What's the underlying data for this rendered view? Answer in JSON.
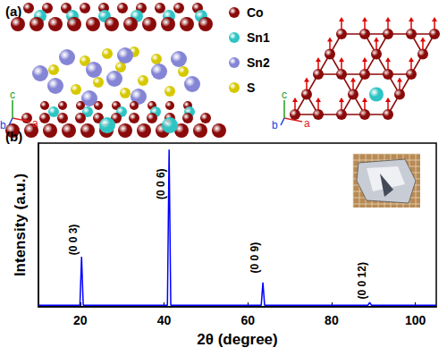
{
  "panel_a": {
    "label": "(a)",
    "legend": [
      {
        "text": "Co",
        "color": "#8b0a0a"
      },
      {
        "text": "Sn1",
        "color": "#2ec4c4"
      },
      {
        "text": "Sn2",
        "color": "#8585d6"
      },
      {
        "text": "S",
        "color": "#d6c800"
      }
    ],
    "axis_labels": [
      "a",
      "b",
      "c"
    ]
  },
  "chart_data": {
    "type": "line",
    "panel_label": "(b)",
    "x_label": "2θ (degree)",
    "y_label": "Intensity (a.u.)",
    "x": [
      10,
      19.9,
      20.3,
      20.7,
      40.8,
      41.2,
      41.6,
      63.2,
      63.6,
      64.0,
      88.7,
      89.1,
      89.5,
      105
    ],
    "values": [
      1,
      1,
      30.6,
      1,
      1,
      96,
      1,
      1,
      14.8,
      1,
      1,
      2.7,
      1,
      1
    ],
    "color": "#0000ff",
    "xlim": [
      10,
      105
    ],
    "xticks": [
      20,
      40,
      60,
      80,
      100
    ],
    "ylim": [
      0,
      100
    ],
    "tick_labels": "x",
    "annotations": [
      {
        "text": "(0 0 3)",
        "x": 20.3,
        "y": 41
      },
      {
        "text": "(0 0 6)",
        "x": 41.2,
        "y": 75
      },
      {
        "text": "(0 0 9)",
        "x": 63.6,
        "y": 30
      },
      {
        "text": "(0 0 12)",
        "x": 89.1,
        "y": 16
      }
    ]
  }
}
